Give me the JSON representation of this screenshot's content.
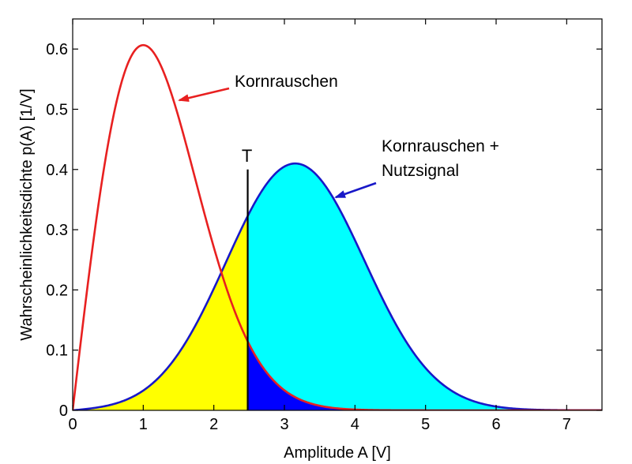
{
  "chart_data": {
    "type": "area",
    "title": "",
    "xlabel": "Amplitude  A [V]",
    "ylabel": "Wahrscheinlichkeitsdichte  p(A) [1/V]",
    "xlim": [
      0,
      7.5
    ],
    "ylim": [
      0,
      0.65
    ],
    "xticks": [
      "0",
      "1",
      "2",
      "3",
      "4",
      "5",
      "6",
      "7"
    ],
    "yticks": [
      "0",
      "0.1",
      "0.2",
      "0.3",
      "0.4",
      "0.5",
      "0.6"
    ],
    "grid": false,
    "threshold": {
      "label": "T",
      "x": 2.48,
      "top": 0.4
    },
    "series": [
      {
        "name": "Kornrauschen",
        "distribution": "rayleigh",
        "sigma": 1.0,
        "color": "#e82020",
        "x": [
          0,
          0.5,
          1,
          1.5,
          2,
          2.5,
          3,
          3.5,
          4,
          5
        ],
        "values": [
          0,
          0.44,
          0.61,
          0.49,
          0.27,
          0.11,
          0.03,
          0.008,
          0.001,
          0
        ]
      },
      {
        "name": "Kornrauschen + Nutzsignal",
        "distribution": "rice",
        "nu": 3.0,
        "sigma": 1.0,
        "color": "#1818c8",
        "x": [
          0,
          1,
          2,
          2.5,
          3,
          3.15,
          3.5,
          4,
          5,
          6,
          7
        ],
        "values": [
          0,
          0.03,
          0.19,
          0.31,
          0.4,
          0.41,
          0.39,
          0.31,
          0.11,
          0.02,
          0.002
        ]
      }
    ],
    "fills": {
      "rice_below_T": "#ffff00",
      "rice_above_T": "#00ffff",
      "rayleigh_above_T": "#0000ff"
    },
    "annotations": [
      {
        "text": "Kornrauschen",
        "target_series": 0
      },
      {
        "text": "Kornrauschen +",
        "target_series": 1
      },
      {
        "text": "Nutzsignal",
        "target_series": 1
      }
    ]
  }
}
